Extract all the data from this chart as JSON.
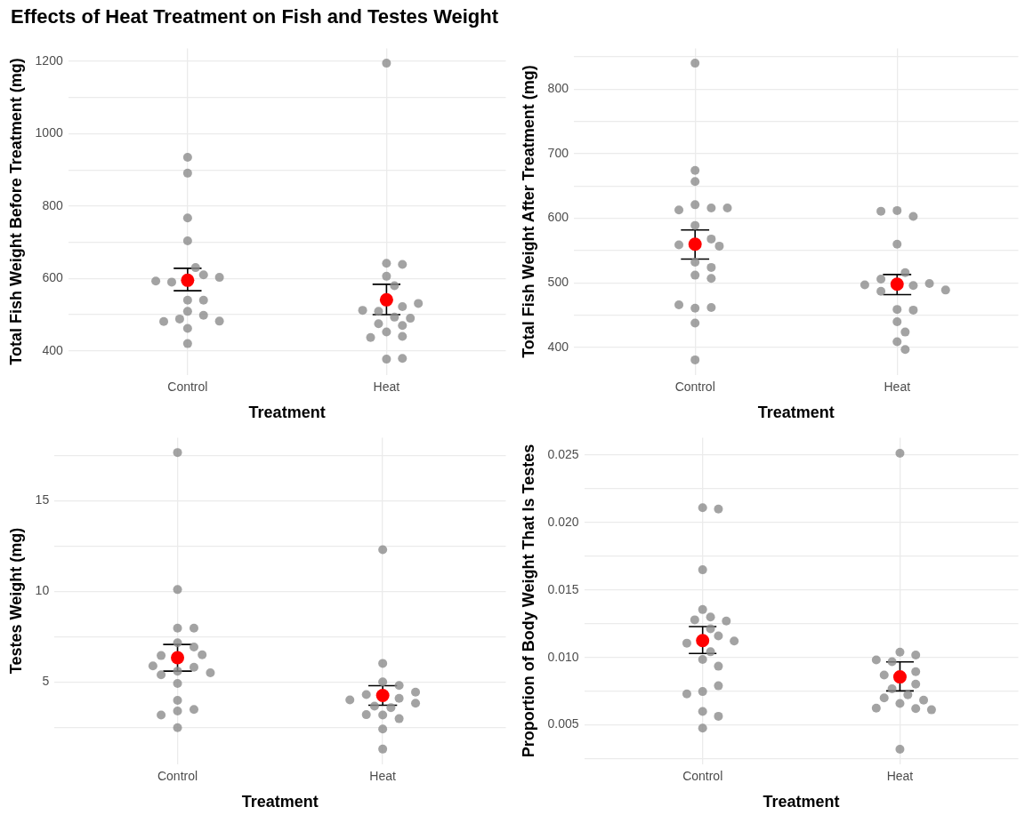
{
  "chart_data": [
    {
      "type": "scatter",
      "title": "Effects of Heat Treatment on Fish and Testes Weight",
      "xlabel": "Treatment",
      "ylabel": "Total Fish Weight Before Treatment (mg)",
      "categories": [
        "Control",
        "Heat"
      ],
      "ylim": [
        334,
        1236
      ],
      "yticks": [
        400,
        {
          "value": 500,
          "label": null
        },
        600,
        {
          "value": 700,
          "label": null
        },
        800,
        {
          "value": 900,
          "label": null
        },
        1000,
        {
          "value": 1100,
          "label": null
        },
        1200
      ],
      "grid": true,
      "marker": "circle",
      "series": [
        {
          "color": "#8c8c8c",
          "x": [
            "Control",
            "Control",
            "Control",
            "Control",
            "Control",
            "Control",
            "Control",
            "Control",
            "Control",
            "Control",
            "Control",
            "Control",
            "Control",
            "Control",
            "Control",
            "Control",
            "Control",
            "Control",
            "Heat",
            "Heat",
            "Heat",
            "Heat",
            "Heat",
            "Heat",
            "Heat",
            "Heat",
            "Heat",
            "Heat",
            "Heat",
            "Heat",
            "Heat",
            "Heat",
            "Heat",
            "Heat",
            "Heat",
            "Heat"
          ],
          "values": [
            891,
            935,
            767,
            704,
            630,
            610,
            590,
            603,
            593,
            540,
            540,
            509,
            498,
            488,
            481,
            482,
            462,
            420,
            1195,
            642,
            639,
            606,
            580,
            522,
            509,
            512,
            531,
            493,
            490,
            475,
            470,
            452,
            440,
            437,
            377,
            379
          ]
        },
        {
          "color": "#ff0000",
          "values": [
            595,
            541
          ],
          "errors": [
            [
              566,
              628
            ],
            [
              500,
              584
            ]
          ]
        }
      ]
    },
    {
      "type": "scatter",
      "xlabel": "Treatment",
      "ylabel": "Total Fish Weight After Treatment (mg)",
      "categories": [
        "Control",
        "Heat"
      ],
      "ylim": [
        358,
        863
      ],
      "yticks": [
        400,
        {
          "value": 450,
          "label": null
        },
        500,
        {
          "value": 550,
          "label": null
        },
        600,
        {
          "value": 650,
          "label": null
        },
        700,
        {
          "value": 750,
          "label": null
        },
        800,
        {
          "value": 850,
          "label": null
        }
      ],
      "grid": true,
      "marker": "circle",
      "series": [
        {
          "color": "#8c8c8c",
          "x": [
            "Control",
            "Control",
            "Control",
            "Control",
            "Control",
            "Control",
            "Control",
            "Control",
            "Control",
            "Control",
            "Control",
            "Control",
            "Control",
            "Control",
            "Control",
            "Control",
            "Control",
            "Control",
            "Control",
            "Control",
            "Heat",
            "Heat",
            "Heat",
            "Heat",
            "Heat",
            "Heat",
            "Heat",
            "Heat",
            "Heat",
            "Heat",
            "Heat",
            "Heat",
            "Heat",
            "Heat",
            "Heat",
            "Heat",
            "Heat"
          ],
          "values": [
            840,
            674,
            657,
            621,
            616,
            613,
            616,
            589,
            568,
            559,
            557,
            532,
            524,
            512,
            507,
            461,
            462,
            466,
            438,
            381,
            612,
            603,
            611,
            560,
            516,
            506,
            496,
            487,
            499,
            497,
            489,
            459,
            458,
            440,
            424,
            409,
            397
          ]
        },
        {
          "color": "#ff0000",
          "values": [
            560,
            498
          ],
          "errors": [
            [
              537,
              582
            ],
            [
              482,
              513
            ]
          ]
        }
      ]
    },
    {
      "type": "scatter",
      "xlabel": "Treatment",
      "ylabel": "Testes Weight (mg)",
      "categories": [
        "Control",
        "Heat"
      ],
      "ylim": [
        0.47,
        18.47
      ],
      "yticks": [
        {
          "value": 2.5,
          "label": null
        },
        5,
        {
          "value": 7.5,
          "label": null
        },
        10,
        {
          "value": 12.5,
          "label": null
        },
        15,
        {
          "value": 17.5,
          "label": null
        }
      ],
      "grid": true,
      "marker": "circle",
      "series": [
        {
          "color": "#8c8c8c",
          "x": [
            "Control",
            "Control",
            "Control",
            "Control",
            "Control",
            "Control",
            "Control",
            "Control",
            "Control",
            "Control",
            "Control",
            "Control",
            "Control",
            "Control",
            "Control",
            "Control",
            "Control",
            "Control",
            "Control",
            "Heat",
            "Heat",
            "Heat",
            "Heat",
            "Heat",
            "Heat",
            "Heat",
            "Heat",
            "Heat",
            "Heat",
            "Heat",
            "Heat",
            "Heat",
            "Heat",
            "Heat",
            "Heat"
          ],
          "values": [
            17.65,
            10.09,
            7.96,
            7.96,
            7.15,
            6.92,
            6.45,
            6.49,
            5.81,
            5.88,
            5.59,
            5.5,
            5.39,
            4.91,
            3.98,
            3.39,
            3.48,
            3.17,
            2.47,
            12.29,
            6.02,
            4.8,
            5.0,
            4.3,
            4.43,
            4.09,
            4.0,
            3.82,
            3.58,
            3.66,
            3.17,
            2.97,
            3.19,
            2.4,
            1.29
          ]
        },
        {
          "color": "#ff0000",
          "values": [
            6.33,
            4.25
          ],
          "errors": [
            [
              5.59,
              7.06
            ],
            [
              3.71,
              4.79
            ]
          ]
        }
      ]
    },
    {
      "type": "scatter",
      "xlabel": "Treatment",
      "ylabel": "Proportion of Body Weight That Is Testes",
      "categories": [
        "Control",
        "Heat"
      ],
      "ylim": [
        0.0021,
        0.0263
      ],
      "yticks": [
        {
          "value": 0.0025,
          "label": null
        },
        0.005,
        {
          "value": 0.0075,
          "label": null
        },
        {
          "value": 0.01,
          "label": "0.010"
        },
        {
          "value": 0.0125,
          "label": null
        },
        0.015,
        {
          "value": 0.0175,
          "label": null
        },
        {
          "value": 0.02,
          "label": "0.020"
        },
        {
          "value": 0.0225,
          "label": null
        },
        0.025
      ],
      "grid": true,
      "marker": "circle",
      "series": [
        {
          "color": "#8c8c8c",
          "x": [
            "Control",
            "Control",
            "Control",
            "Control",
            "Control",
            "Control",
            "Control",
            "Control",
            "Control",
            "Control",
            "Control",
            "Control",
            "Control",
            "Control",
            "Control",
            "Control",
            "Control",
            "Control",
            "Control",
            "Control",
            "Heat",
            "Heat",
            "Heat",
            "Heat",
            "Heat",
            "Heat",
            "Heat",
            "Heat",
            "Heat",
            "Heat",
            "Heat",
            "Heat",
            "Heat",
            "Heat",
            "Heat",
            "Heat",
            "Heat"
          ],
          "values": [
            0.0211,
            0.021,
            0.0165,
            0.01355,
            0.013,
            0.01279,
            0.0127,
            0.01213,
            0.0116,
            0.01106,
            0.01122,
            0.01042,
            0.00985,
            0.00935,
            0.00747,
            0.0079,
            0.0073,
            0.006,
            0.00564,
            0.00476,
            0.02514,
            0.01039,
            0.01018,
            0.00968,
            0.00982,
            0.00894,
            0.0087,
            0.00802,
            0.00768,
            0.00723,
            0.007,
            0.00683,
            0.00659,
            0.00621,
            0.00624,
            0.00612,
            0.00319
          ]
        },
        {
          "color": "#ff0000",
          "values": [
            0.01125,
            0.00856
          ],
          "errors": [
            [
              0.0103,
              0.01229
            ],
            [
              0.00752,
              0.00967
            ]
          ]
        }
      ]
    }
  ]
}
